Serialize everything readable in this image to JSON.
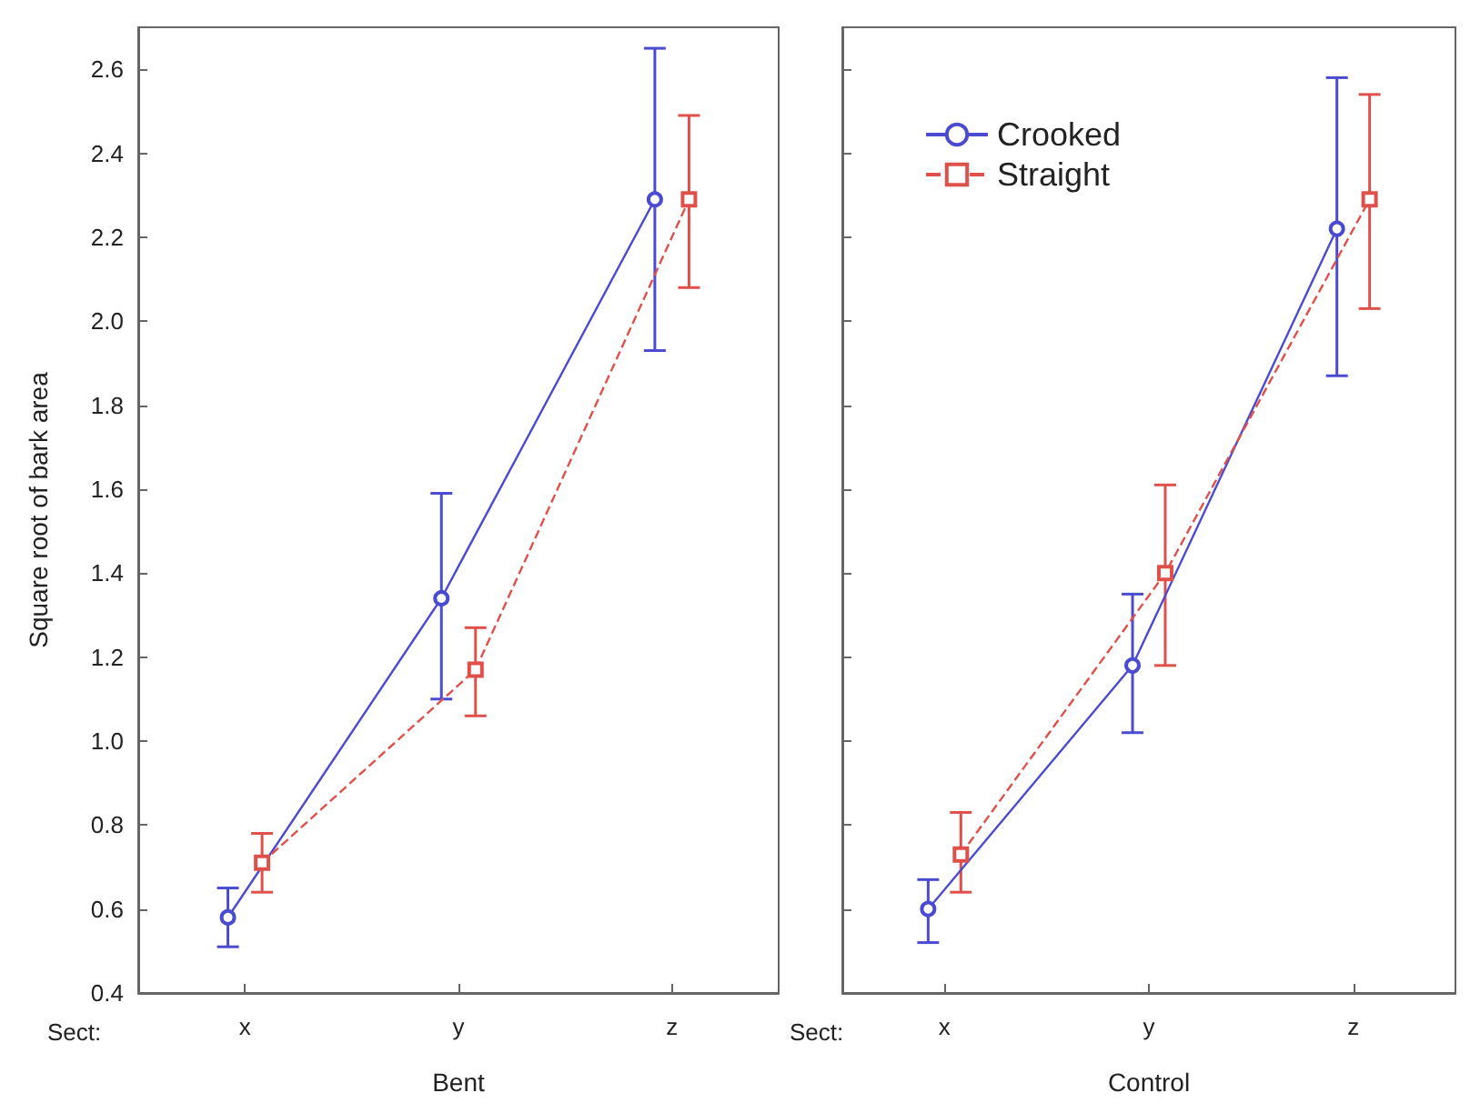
{
  "chart_data": [
    {
      "type": "line",
      "xlabel": "Bent",
      "ylabel": "Square root of bark area",
      "annotations": [
        "Sect:"
      ],
      "categories": [
        "x",
        "y",
        "z"
      ],
      "ylim": [
        0.4,
        2.7
      ],
      "yticks": [
        0.4,
        0.6,
        0.8,
        {
          "value": 1.0,
          "label": "1.0"
        },
        1.2,
        1.4,
        1.6,
        1.8,
        {
          "value": 2.0,
          "label": "2.0"
        },
        2.2,
        2.4,
        2.6
      ],
      "grid": false,
      "legend": false,
      "series": [
        {
          "color": "#4b4bd2",
          "marker": "circle",
          "line_style": "solid",
          "values": [
            0.58,
            1.34,
            2.29
          ],
          "errors": [
            [
              0.51,
              0.65
            ],
            [
              1.1,
              1.59
            ],
            [
              1.93,
              2.65
            ]
          ]
        },
        {
          "color": "#e0504b",
          "marker": "square",
          "line_style": "dashed",
          "values": [
            0.71,
            1.17,
            2.29
          ],
          "errors": [
            [
              0.64,
              0.78
            ],
            [
              1.06,
              1.27
            ],
            [
              2.08,
              2.49
            ]
          ]
        }
      ]
    },
    {
      "type": "line",
      "xlabel": "Control",
      "annotations": [
        "Sect:"
      ],
      "categories": [
        "x",
        "y",
        "z"
      ],
      "ylim": [
        0.4,
        2.7
      ],
      "yticks": [
        0.4,
        0.6,
        0.8,
        1.0,
        1.2,
        1.4,
        1.6,
        1.8,
        2.0,
        2.2,
        2.4,
        2.6
      ],
      "grid": false,
      "legend": "top left",
      "tick_labels": "x",
      "series": [
        {
          "name": "Crooked",
          "color": "#4b4bd2",
          "marker": "circle",
          "line_style": "solid",
          "values": [
            0.6,
            1.18,
            2.22
          ],
          "errors": [
            [
              0.52,
              0.67
            ],
            [
              1.02,
              1.35
            ],
            [
              1.87,
              2.58
            ]
          ]
        },
        {
          "name": "Straight",
          "color": "#e0504b",
          "marker": "square",
          "line_style": "dashed",
          "values": [
            0.73,
            1.4,
            2.29
          ],
          "errors": [
            [
              0.64,
              0.83
            ],
            [
              1.18,
              1.61
            ],
            [
              2.03,
              2.54
            ]
          ]
        }
      ]
    }
  ]
}
